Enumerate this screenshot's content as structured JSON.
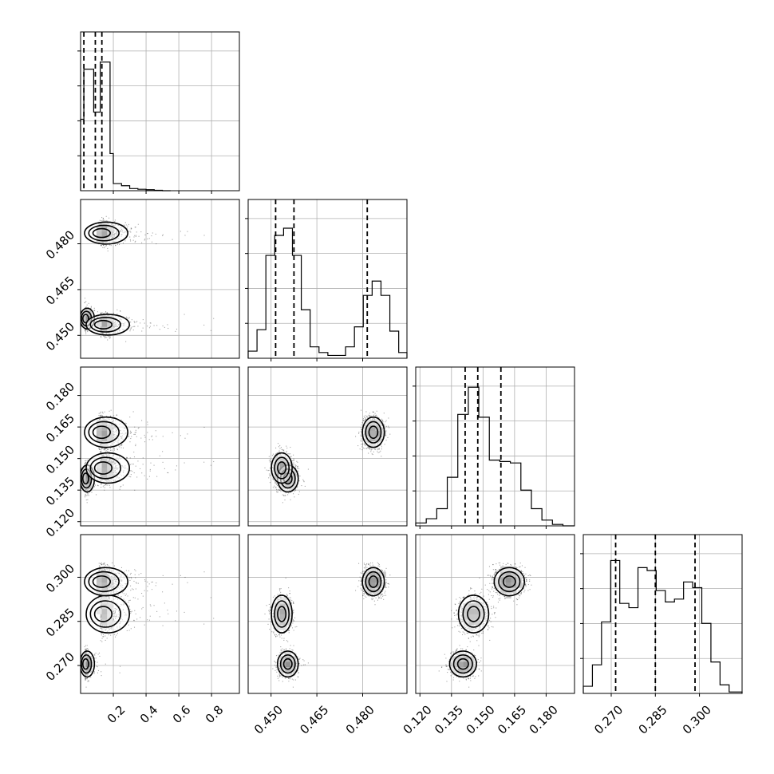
{
  "chart_data": {
    "type": "corner",
    "parameters": [
      {
        "range": [
          0.0,
          0.97
        ],
        "ticks": [
          0.2,
          0.4,
          0.6,
          0.8
        ],
        "tick_labels": [
          "0.2",
          "0.4",
          "0.6",
          "0.8"
        ],
        "quantiles": [
          0.02,
          0.09,
          0.13
        ],
        "hist_bins": [
          0.0,
          0.02,
          0.04,
          0.06,
          0.08,
          0.1,
          0.12,
          0.14,
          0.16,
          0.18,
          0.2,
          0.25,
          0.3,
          0.35,
          0.4,
          0.45,
          0.5,
          0.55
        ],
        "hist_counts": [
          0.5,
          0.85,
          0.85,
          0.85,
          0.55,
          0.55,
          0.9,
          0.9,
          0.9,
          0.26,
          0.05,
          0.035,
          0.015,
          0.01,
          0.007,
          0.003,
          0.0
        ]
      },
      {
        "range": [
          0.4425,
          0.4945
        ],
        "ticks": [
          0.45,
          0.465,
          0.48
        ],
        "tick_labels": [
          "0.450",
          "0.465",
          "0.480"
        ],
        "quantiles": [
          0.4515,
          0.4575,
          0.4815
        ],
        "hist_bins": [
          0.4425,
          0.4454,
          0.4483,
          0.4512,
          0.4541,
          0.457,
          0.4599,
          0.4628,
          0.4657,
          0.4686,
          0.4715,
          0.4744,
          0.4773,
          0.4802,
          0.4831,
          0.486,
          0.4889,
          0.4918,
          0.4945
        ],
        "hist_counts": [
          0.05,
          0.2,
          0.72,
          0.86,
          0.91,
          0.72,
          0.34,
          0.08,
          0.04,
          0.02,
          0.02,
          0.08,
          0.22,
          0.44,
          0.54,
          0.44,
          0.19,
          0.04
        ]
      },
      {
        "range": [
          0.118,
          0.1935
        ],
        "ticks": [
          0.12,
          0.135,
          0.15,
          0.165,
          0.18
        ],
        "tick_labels": [
          "0.120",
          "0.135",
          "0.150",
          "0.165",
          "0.180"
        ],
        "quantiles": [
          0.1415,
          0.1475,
          0.1585
        ],
        "hist_bins": [
          0.118,
          0.123,
          0.128,
          0.133,
          0.138,
          0.143,
          0.148,
          0.153,
          0.158,
          0.163,
          0.168,
          0.173,
          0.178,
          0.183,
          0.188,
          0.1935
        ],
        "hist_counts": [
          0.02,
          0.05,
          0.12,
          0.34,
          0.78,
          0.97,
          0.76,
          0.46,
          0.45,
          0.44,
          0.25,
          0.12,
          0.04,
          0.01,
          0.0
        ]
      },
      {
        "range": [
          0.2605,
          0.3145
        ],
        "ticks": [
          0.27,
          0.285,
          0.3
        ],
        "tick_labels": [
          "0.270",
          "0.285",
          "0.300"
        ],
        "quantiles": [
          0.2715,
          0.285,
          0.2985
        ],
        "hist_bins": [
          0.2605,
          0.2636,
          0.2667,
          0.2698,
          0.2729,
          0.276,
          0.2791,
          0.2822,
          0.2853,
          0.2884,
          0.2915,
          0.2946,
          0.2977,
          0.3008,
          0.3039,
          0.307,
          0.3101,
          0.3145
        ],
        "hist_counts": [
          0.05,
          0.2,
          0.5,
          0.93,
          0.63,
          0.6,
          0.88,
          0.86,
          0.72,
          0.64,
          0.66,
          0.78,
          0.74,
          0.49,
          0.22,
          0.06,
          0.01
        ]
      }
    ],
    "modes": [
      {
        "mean": [
          0.025,
          0.4555,
          0.1405,
          0.2705
        ],
        "sd": [
          0.02,
          0.0017,
          0.0032,
          0.0022
        ],
        "weight": 0.28
      },
      {
        "mean": [
          0.12,
          0.4535,
          0.1455,
          0.2875
        ],
        "sd": [
          0.06,
          0.0017,
          0.0036,
          0.0032
        ],
        "weight": 0.32
      },
      {
        "mean": [
          0.11,
          0.4835,
          0.1625,
          0.2985
        ],
        "sd": [
          0.06,
          0.0018,
          0.0036,
          0.0024
        ],
        "weight": 0.4
      }
    ],
    "grid": true,
    "hist_kind": "step",
    "quantile_style": "dashed",
    "contours": true,
    "scatter": true
  }
}
